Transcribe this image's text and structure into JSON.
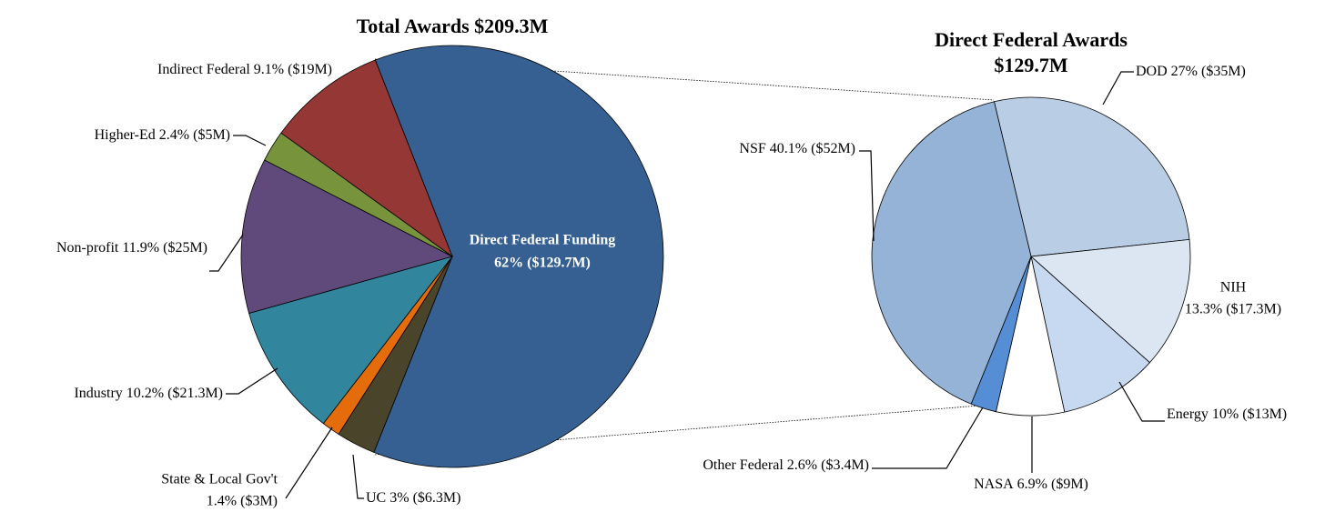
{
  "chart_data": [
    {
      "type": "pie",
      "title": "Total Awards $209.3M",
      "categories": [
        "Direct Federal Funding",
        "UC",
        "State & Local Gov't",
        "Industry",
        "Non-profit",
        "Higher-Ed",
        "Indirect Federal"
      ],
      "values": [
        62,
        3,
        1.4,
        10.2,
        11.9,
        2.4,
        9.1
      ],
      "value_labels": [
        "62% ($129.7M)",
        "3% ($6.3M)",
        "1.4% ($3M)",
        "10.2% ($21.3M)",
        "11.9% ($25M)",
        "2.4% ($5M)",
        "9.1% ($19M)"
      ],
      "colors": [
        "#376092",
        "#4a452a",
        "#e46c0a",
        "#31859c",
        "#604a7b",
        "#77933c",
        "#953735"
      ]
    },
    {
      "type": "pie",
      "title": "Direct Federal Awards",
      "subtitle": "$129.7M",
      "categories": [
        "DOD",
        "NIH",
        "Energy",
        "NASA",
        "Other Federal",
        "NSF"
      ],
      "values": [
        27,
        13.3,
        10,
        6.9,
        2.6,
        40.1
      ],
      "value_labels": [
        "27% ($35M)",
        "13.3% ($17.3M)",
        "10% ($13M)",
        "6.9% ($9M)",
        "2.6% ($3.4M)",
        "40.1% ($52M)"
      ],
      "colors": [
        "#b9cde5",
        "#dce6f2",
        "#c6d9f1",
        "#ffffff",
        "#558ed5",
        "#95b3d7"
      ]
    }
  ]
}
